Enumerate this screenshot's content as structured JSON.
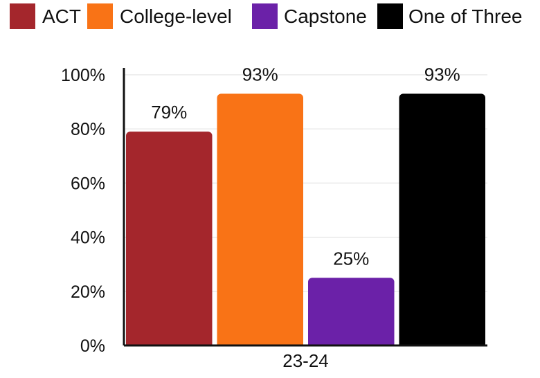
{
  "chart_data": {
    "type": "bar",
    "categories": [
      "23-24"
    ],
    "series": [
      {
        "name": "ACT",
        "values": [
          79
        ],
        "label": "79%",
        "color": "#a4262c"
      },
      {
        "name": "College-level",
        "values": [
          93
        ],
        "label": "93%",
        "color": "#f97316"
      },
      {
        "name": "Capstone",
        "values": [
          25
        ],
        "label": "25%",
        "color": "#6b21a8"
      },
      {
        "name": "One of Three",
        "values": [
          93
        ],
        "label": "93%",
        "color": "#000000"
      }
    ],
    "ylim": [
      0,
      100
    ],
    "yticks": [
      0,
      20,
      40,
      60,
      80,
      100
    ],
    "ytick_labels": [
      "0%",
      "20%",
      "40%",
      "60%",
      "80%",
      "100%"
    ],
    "y_unit": "%",
    "grid": true,
    "legend_position": "top"
  }
}
